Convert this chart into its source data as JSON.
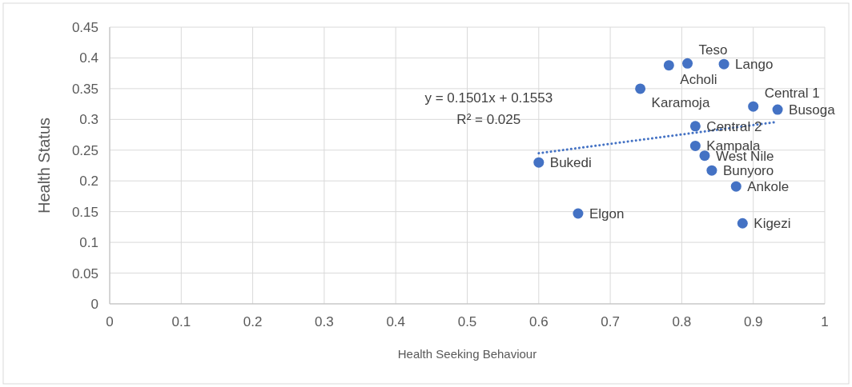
{
  "chart_data": {
    "type": "scatter",
    "xlabel": "Health Seeking Behaviour",
    "ylabel": "Health Status",
    "xlim": [
      0,
      1
    ],
    "xticks": [
      0,
      0.1,
      0.2,
      0.3,
      0.4,
      0.5,
      0.6,
      0.7,
      0.8,
      0.9,
      1
    ],
    "ylim": [
      0,
      0.45
    ],
    "yticks": [
      0,
      0.05,
      0.1,
      0.15,
      0.2,
      0.25,
      0.3,
      0.35,
      0.4,
      0.45
    ],
    "grid": true,
    "marker": "circle",
    "series": [
      {
        "color": "#4472c4",
        "x": [
          0.782,
          0.808,
          0.859,
          0.742,
          0.9,
          0.934,
          0.819,
          0.819,
          0.832,
          0.842,
          0.876,
          0.6,
          0.655,
          0.885
        ],
        "values": [
          0.388,
          0.391,
          0.39,
          0.35,
          0.321,
          0.316,
          0.289,
          0.257,
          0.241,
          0.217,
          0.191,
          0.23,
          0.147,
          0.131
        ]
      },
      {
        "type": "line",
        "color": "#4472c4",
        "line_style": "dotted",
        "marker": "none",
        "x": [
          0.6,
          0.934
        ],
        "values": [
          0.245,
          0.296
        ]
      }
    ],
    "annotations": [
      {
        "text": "Acholi",
        "x": 0.782,
        "y": 0.388
      },
      {
        "text": "Teso",
        "x": 0.808,
        "y": 0.391
      },
      {
        "text": "Lango",
        "x": 0.859,
        "y": 0.39
      },
      {
        "text": "Karamoja",
        "x": 0.742,
        "y": 0.35
      },
      {
        "text": "Central 1",
        "x": 0.9,
        "y": 0.321
      },
      {
        "text": "Busoga",
        "x": 0.934,
        "y": 0.316
      },
      {
        "text": "Central 2",
        "x": 0.819,
        "y": 0.289
      },
      {
        "text": "Kampala",
        "x": 0.819,
        "y": 0.257
      },
      {
        "text": "West Nile",
        "x": 0.832,
        "y": 0.241
      },
      {
        "text": "Bunyoro",
        "x": 0.842,
        "y": 0.217
      },
      {
        "text": "Ankole",
        "x": 0.876,
        "y": 0.191
      },
      {
        "text": "Bukedi",
        "x": 0.6,
        "y": 0.23
      },
      {
        "text": "Elgon",
        "x": 0.655,
        "y": 0.147
      },
      {
        "text": "Kigezi",
        "x": 0.885,
        "y": 0.131
      },
      "y = 0.1501x + 0.1553",
      "R² = 0.025"
    ]
  }
}
